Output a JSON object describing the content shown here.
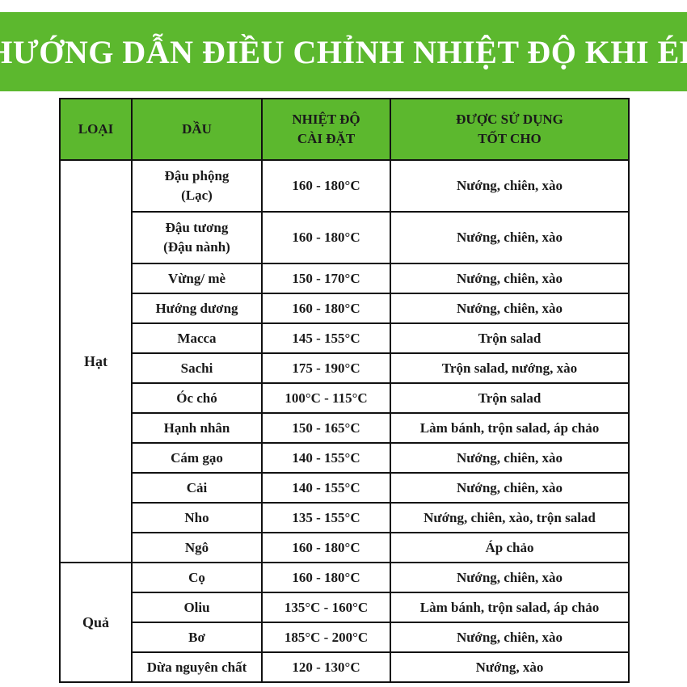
{
  "title": "HƯỚNG DẪN ĐIỀU CHỈNH NHIỆT ĐỘ KHI ÉP",
  "colors": {
    "accent": "#5cb82e",
    "border": "#111111"
  },
  "headers": {
    "type": "LOẠI",
    "oil": "DẦU",
    "temp_line1": "NHIỆT ĐỘ",
    "temp_line2": "CÀI ĐẶT",
    "use_line1": "ĐƯỢC SỬ DỤNG",
    "use_line2": "TỐT CHO"
  },
  "groups": [
    {
      "label": "Hạt",
      "rows": [
        {
          "oil": "Đậu phộng",
          "oil2": "(Lạc)",
          "temp": "160 - 180°C",
          "use": "Nướng, chiên, xào"
        },
        {
          "oil": "Đậu tương",
          "oil2": "(Đậu nành)",
          "temp": "160 - 180°C",
          "use": "Nướng, chiên, xào"
        },
        {
          "oil": "Vừng/ mè",
          "temp": "150 - 170°C",
          "use": "Nướng, chiên, xào"
        },
        {
          "oil": "Hướng dương",
          "temp": "160 - 180°C",
          "use": "Nướng, chiên, xào"
        },
        {
          "oil": "Macca",
          "temp": "145 - 155°C",
          "use": "Trộn salad"
        },
        {
          "oil": "Sachi",
          "temp": "175 - 190°C",
          "use": "Trộn salad, nướng, xào"
        },
        {
          "oil": "Óc chó",
          "temp": "100°C - 115°C",
          "use": "Trộn salad"
        },
        {
          "oil": "Hạnh nhân",
          "temp": "150 - 165°C",
          "use": "Làm bánh, trộn salad, áp chảo"
        },
        {
          "oil": "Cám gạo",
          "temp": "140 - 155°C",
          "use": "Nướng, chiên, xào"
        },
        {
          "oil": "Cải",
          "temp": "140 - 155°C",
          "use": "Nướng, chiên, xào"
        },
        {
          "oil": "Nho",
          "temp": "135 - 155°C",
          "use": "Nướng, chiên, xào, trộn salad"
        },
        {
          "oil": "Ngô",
          "temp": "160 - 180°C",
          "use": "Áp chảo"
        }
      ]
    },
    {
      "label": "Quả",
      "rows": [
        {
          "oil": "Cọ",
          "temp": "160 - 180°C",
          "use": "Nướng, chiên, xào"
        },
        {
          "oil": "Oliu",
          "temp": "135°C - 160°C",
          "use": "Làm bánh, trộn salad, áp chảo"
        },
        {
          "oil": "Bơ",
          "temp": "185°C - 200°C",
          "use": "Nướng, chiên, xào"
        },
        {
          "oil": "Dừa nguyên chất",
          "temp": "120 - 130°C",
          "use": "Nướng, xào"
        }
      ]
    }
  ]
}
